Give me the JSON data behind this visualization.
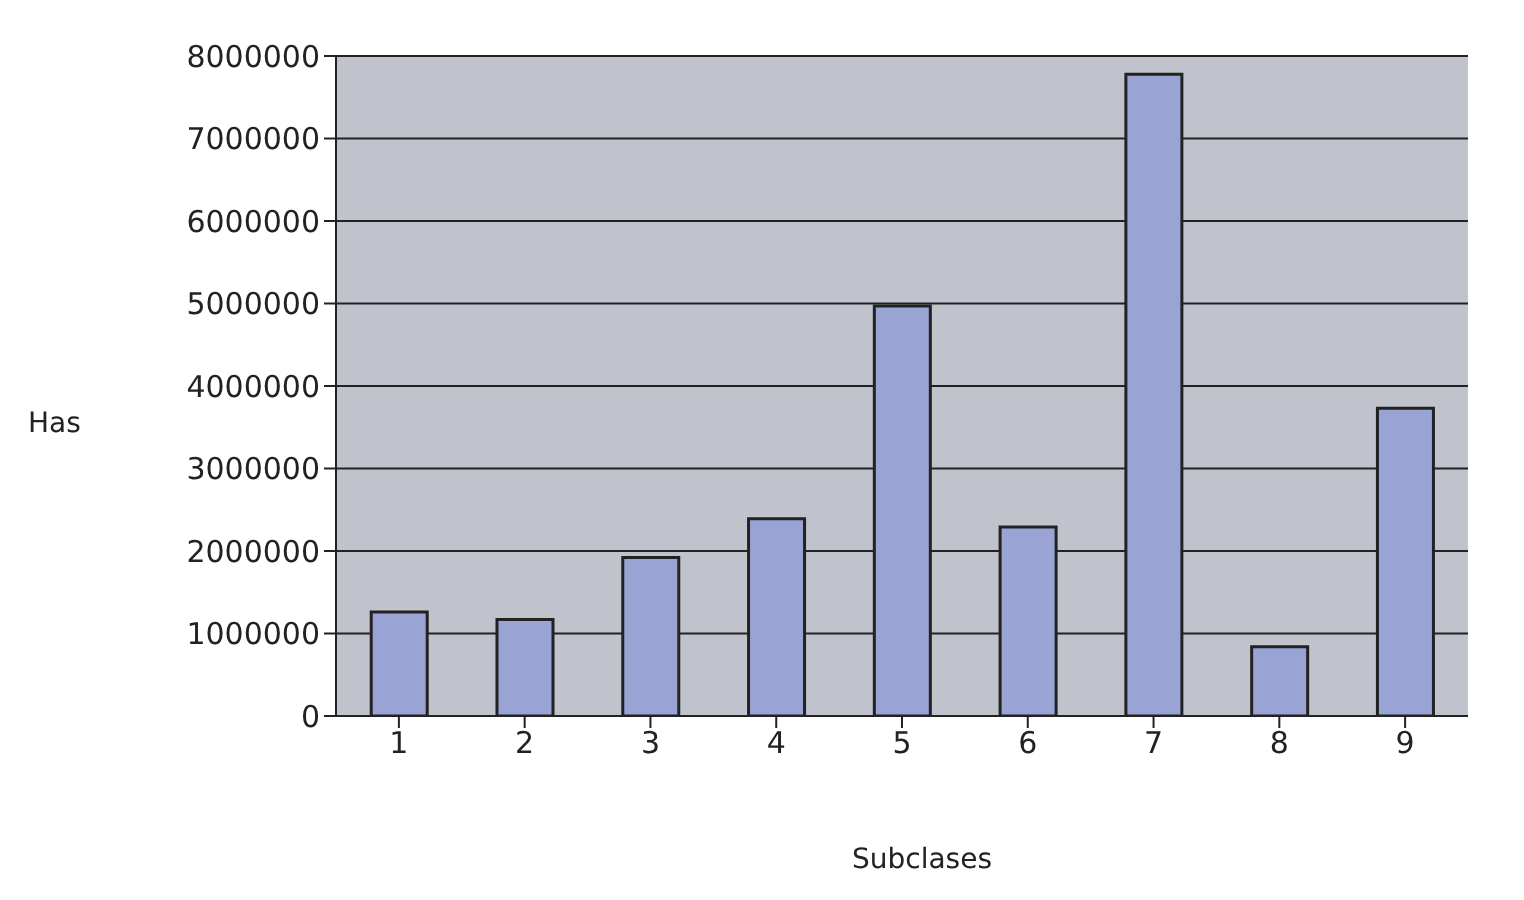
{
  "chart_data": {
    "type": "bar",
    "xlabel": "Subclases",
    "ylabel": "Has",
    "categories": [
      "1",
      "2",
      "3",
      "4",
      "5",
      "6",
      "7",
      "8",
      "9"
    ],
    "values": [
      1260000,
      1170000,
      1920000,
      2390000,
      4970000,
      2290000,
      7780000,
      840000,
      3730000
    ],
    "color": "#99a4d4",
    "ylim": [
      0,
      8000000
    ],
    "yticks": [
      0,
      1000000,
      2000000,
      3000000,
      4000000,
      5000000,
      6000000,
      7000000,
      8000000
    ],
    "grid": "y"
  }
}
